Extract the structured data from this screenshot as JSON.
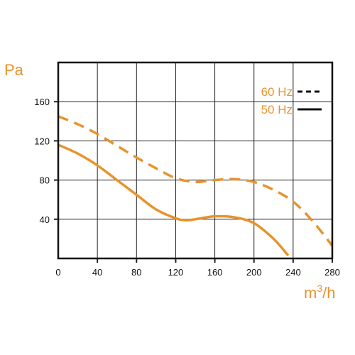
{
  "chart_data": {
    "type": "line",
    "title": "",
    "xlabel": "m3/h",
    "xlabel_base": "m",
    "xlabel_sup": "3",
    "xlabel_rest": "/h",
    "ylabel": "Pa",
    "xlim": [
      0,
      280
    ],
    "ylim": [
      0,
      200
    ],
    "x_ticks": [
      0,
      40,
      80,
      120,
      160,
      200,
      240,
      280
    ],
    "x_tick_labels": [
      "0",
      "40",
      "80",
      "120",
      "160",
      "200",
      "240",
      "280"
    ],
    "y_ticks": [
      40,
      80,
      120,
      160
    ],
    "y_tick_labels": [
      "40",
      "80",
      "120",
      "160"
    ],
    "grid": true,
    "legend_position": "top-right",
    "colors": {
      "curve": "#e8932c",
      "grid": "#222222",
      "frame": "#111111"
    },
    "series": [
      {
        "name": "60 Hz",
        "style": "dashed",
        "x": [
          0,
          20,
          40,
          60,
          80,
          100,
          120,
          140,
          160,
          180,
          200,
          220,
          240,
          260,
          280
        ],
        "y": [
          145,
          137,
          127,
          115,
          103,
          92,
          82,
          78,
          80,
          81,
          78,
          70,
          58,
          38,
          13
        ]
      },
      {
        "name": "50 Hz",
        "style": "solid",
        "x": [
          0,
          20,
          40,
          60,
          80,
          100,
          120,
          130,
          140,
          160,
          180,
          200,
          220,
          235
        ],
        "y": [
          116,
          107,
          95,
          80,
          65,
          50,
          41,
          39,
          40,
          43,
          42,
          36,
          20,
          3
        ]
      }
    ]
  }
}
